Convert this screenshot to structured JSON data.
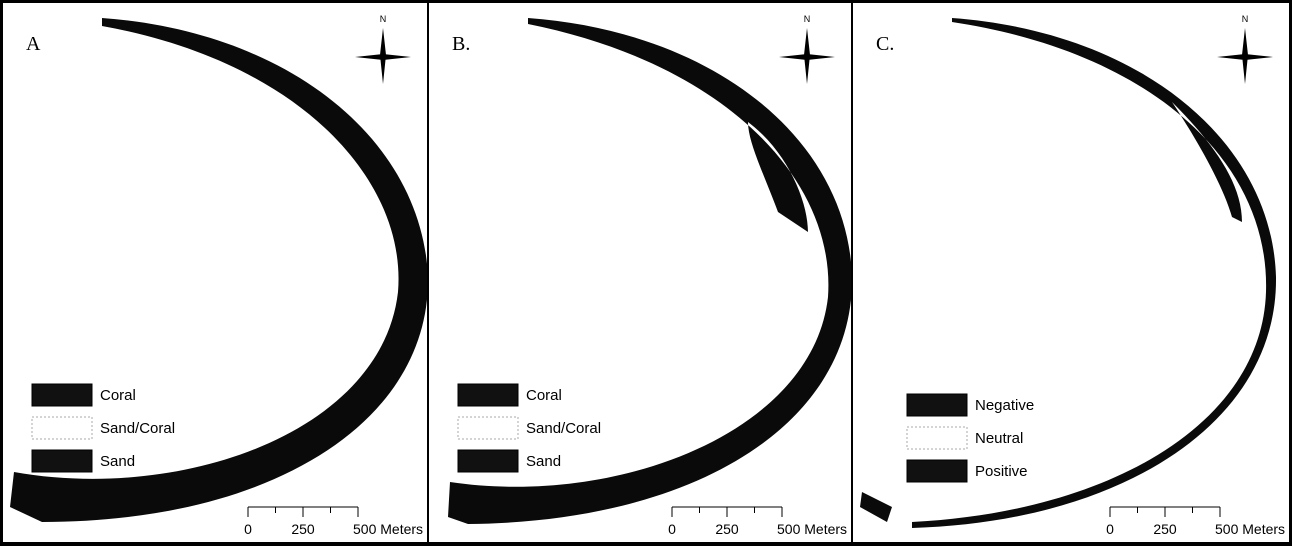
{
  "panels": [
    {
      "label": "A",
      "north": "N",
      "legend": [
        "Coral",
        "Sand/Coral",
        "Sand"
      ],
      "scale": [
        "0",
        "250",
        "500 Meters"
      ]
    },
    {
      "label": "B.",
      "north": "N",
      "legend": [
        "Coral",
        "Sand/Coral",
        "Sand"
      ],
      "scale": [
        "0",
        "250",
        "500 Meters"
      ]
    },
    {
      "label": "C.",
      "north": "N",
      "legend": [
        "Negative",
        "Neutral",
        "Positive"
      ],
      "scale": [
        "0",
        "250",
        "500 Meters"
      ]
    }
  ]
}
